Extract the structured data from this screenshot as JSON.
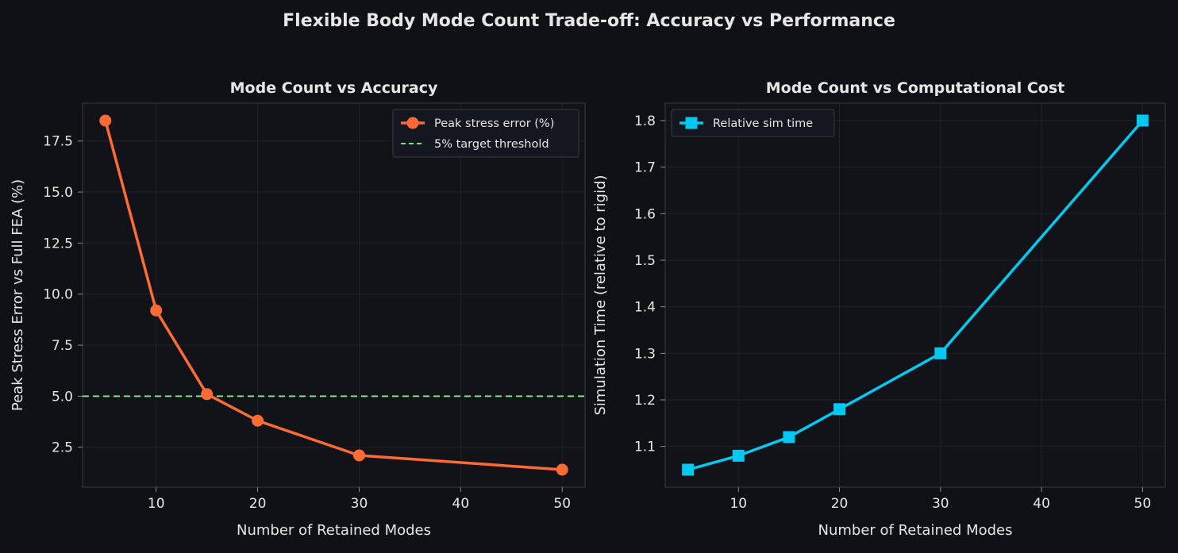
{
  "figure": {
    "suptitle": "Flexible Body Mode Count Trade-off: Accuracy vs Performance",
    "colors": {
      "background": "#101117",
      "axes_bg": "#111319",
      "text": "#e6e6e6",
      "spine": "#30323b",
      "grid": "#1f2129"
    }
  },
  "chart_data": [
    {
      "type": "line",
      "title": "Mode Count vs Accuracy",
      "xlabel": "Number of Retained Modes",
      "ylabel": "Peak Stress Error vs Full FEA (%)",
      "xlim": [
        2.75,
        52.25
      ],
      "ylim": [
        0.545,
        19.355
      ],
      "xticks": [
        10,
        20,
        30,
        40,
        50
      ],
      "xtick_labels": [
        "10",
        "20",
        "30",
        "40",
        "50"
      ],
      "yticks": [
        2.5,
        5.0,
        7.5,
        10.0,
        12.5,
        15.0,
        17.5
      ],
      "ytick_labels": [
        "2.5",
        "5.0",
        "7.5",
        "10.0",
        "12.5",
        "15.0",
        "17.5"
      ],
      "grid": true,
      "legend_position": "top-right",
      "series": [
        {
          "name": "Peak stress error (%)",
          "marker": "circle",
          "color": "#ff6b35",
          "x": [
            5,
            10,
            15,
            20,
            30,
            50
          ],
          "y": [
            18.5,
            9.2,
            5.1,
            3.8,
            2.1,
            1.4
          ]
        }
      ],
      "reference_lines": [
        {
          "name": "5% target threshold",
          "y": 5.0,
          "color": "#7ee07a",
          "style": "dashed"
        }
      ]
    },
    {
      "type": "line",
      "title": "Mode Count vs Computational Cost",
      "xlabel": "Number of Retained Modes",
      "ylabel": "Simulation Time (relative to rigid)",
      "xlim": [
        2.75,
        52.25
      ],
      "ylim": [
        1.0125,
        1.8375
      ],
      "xticks": [
        10,
        20,
        30,
        40,
        50
      ],
      "xtick_labels": [
        "10",
        "20",
        "30",
        "40",
        "50"
      ],
      "yticks": [
        1.1,
        1.2,
        1.3,
        1.4,
        1.5,
        1.6,
        1.7,
        1.8
      ],
      "ytick_labels": [
        "1.1",
        "1.2",
        "1.3",
        "1.4",
        "1.5",
        "1.6",
        "1.7",
        "1.8"
      ],
      "grid": true,
      "legend_position": "top-left",
      "series": [
        {
          "name": "Relative sim time",
          "marker": "square",
          "color": "#00c8f0",
          "x": [
            5,
            10,
            15,
            20,
            30,
            50
          ],
          "y": [
            1.05,
            1.08,
            1.12,
            1.18,
            1.3,
            1.8
          ]
        }
      ],
      "reference_lines": []
    }
  ]
}
